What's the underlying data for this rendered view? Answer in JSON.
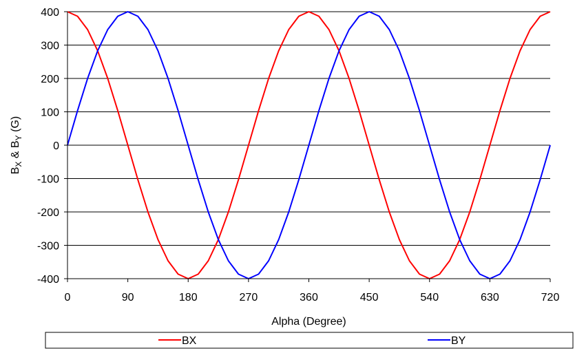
{
  "chart_data": {
    "type": "line",
    "xlabel": "Alpha (Degree)",
    "ylabel": {
      "parts": [
        "B",
        "X",
        " & B",
        "Y",
        " (G)"
      ]
    },
    "xlim": [
      0,
      720
    ],
    "ylim": [
      -400,
      400
    ],
    "x_ticks": [
      "0",
      "90",
      "180",
      "270",
      "360",
      "450",
      "540",
      "630",
      "720"
    ],
    "y_ticks": [
      "400",
      "300",
      "200",
      "100",
      "0",
      "-100",
      "-200",
      "-300",
      "-400"
    ],
    "grid": "horizontal",
    "legend_position": "bottom",
    "series": [
      {
        "name": "BX",
        "color": "#ff0000",
        "x": [
          0,
          15,
          30,
          45,
          60,
          75,
          90,
          105,
          120,
          135,
          150,
          165,
          180,
          195,
          210,
          225,
          240,
          255,
          270,
          285,
          300,
          315,
          330,
          345,
          360,
          375,
          390,
          405,
          420,
          435,
          450,
          465,
          480,
          495,
          510,
          525,
          540,
          555,
          570,
          585,
          600,
          615,
          630,
          645,
          660,
          675,
          690,
          705,
          720
        ],
        "values": [
          400,
          386.4,
          346.4,
          282.8,
          200,
          103.5,
          0,
          -103.5,
          -200,
          -282.8,
          -346.4,
          -386.4,
          -400,
          -386.4,
          -346.4,
          -282.8,
          -200,
          -103.5,
          0,
          103.5,
          200,
          282.8,
          346.4,
          386.4,
          400,
          386.4,
          346.4,
          282.8,
          200,
          103.5,
          0,
          -103.5,
          -200,
          -282.8,
          -346.4,
          -386.4,
          -400,
          -386.4,
          -346.4,
          -282.8,
          -200,
          -103.5,
          0,
          103.5,
          200,
          282.8,
          346.4,
          386.4,
          400
        ]
      },
      {
        "name": "BY",
        "color": "#0000ff",
        "x": [
          0,
          15,
          30,
          45,
          60,
          75,
          90,
          105,
          120,
          135,
          150,
          165,
          180,
          195,
          210,
          225,
          240,
          255,
          270,
          285,
          300,
          315,
          330,
          345,
          360,
          375,
          390,
          405,
          420,
          435,
          450,
          465,
          480,
          495,
          510,
          525,
          540,
          555,
          570,
          585,
          600,
          615,
          630,
          645,
          660,
          675,
          690,
          705,
          720
        ],
        "values": [
          0,
          103.5,
          200,
          282.8,
          346.4,
          386.4,
          400,
          386.4,
          346.4,
          282.8,
          200,
          103.5,
          0,
          -103.5,
          -200,
          -282.8,
          -346.4,
          -386.4,
          -400,
          -386.4,
          -346.4,
          -282.8,
          -200,
          -103.5,
          0,
          103.5,
          200,
          282.8,
          346.4,
          386.4,
          400,
          386.4,
          346.4,
          282.8,
          200,
          103.5,
          0,
          -103.5,
          -200,
          -282.8,
          -346.4,
          -386.4,
          -400,
          -386.4,
          -346.4,
          -282.8,
          -200,
          -103.5,
          0
        ]
      }
    ]
  }
}
